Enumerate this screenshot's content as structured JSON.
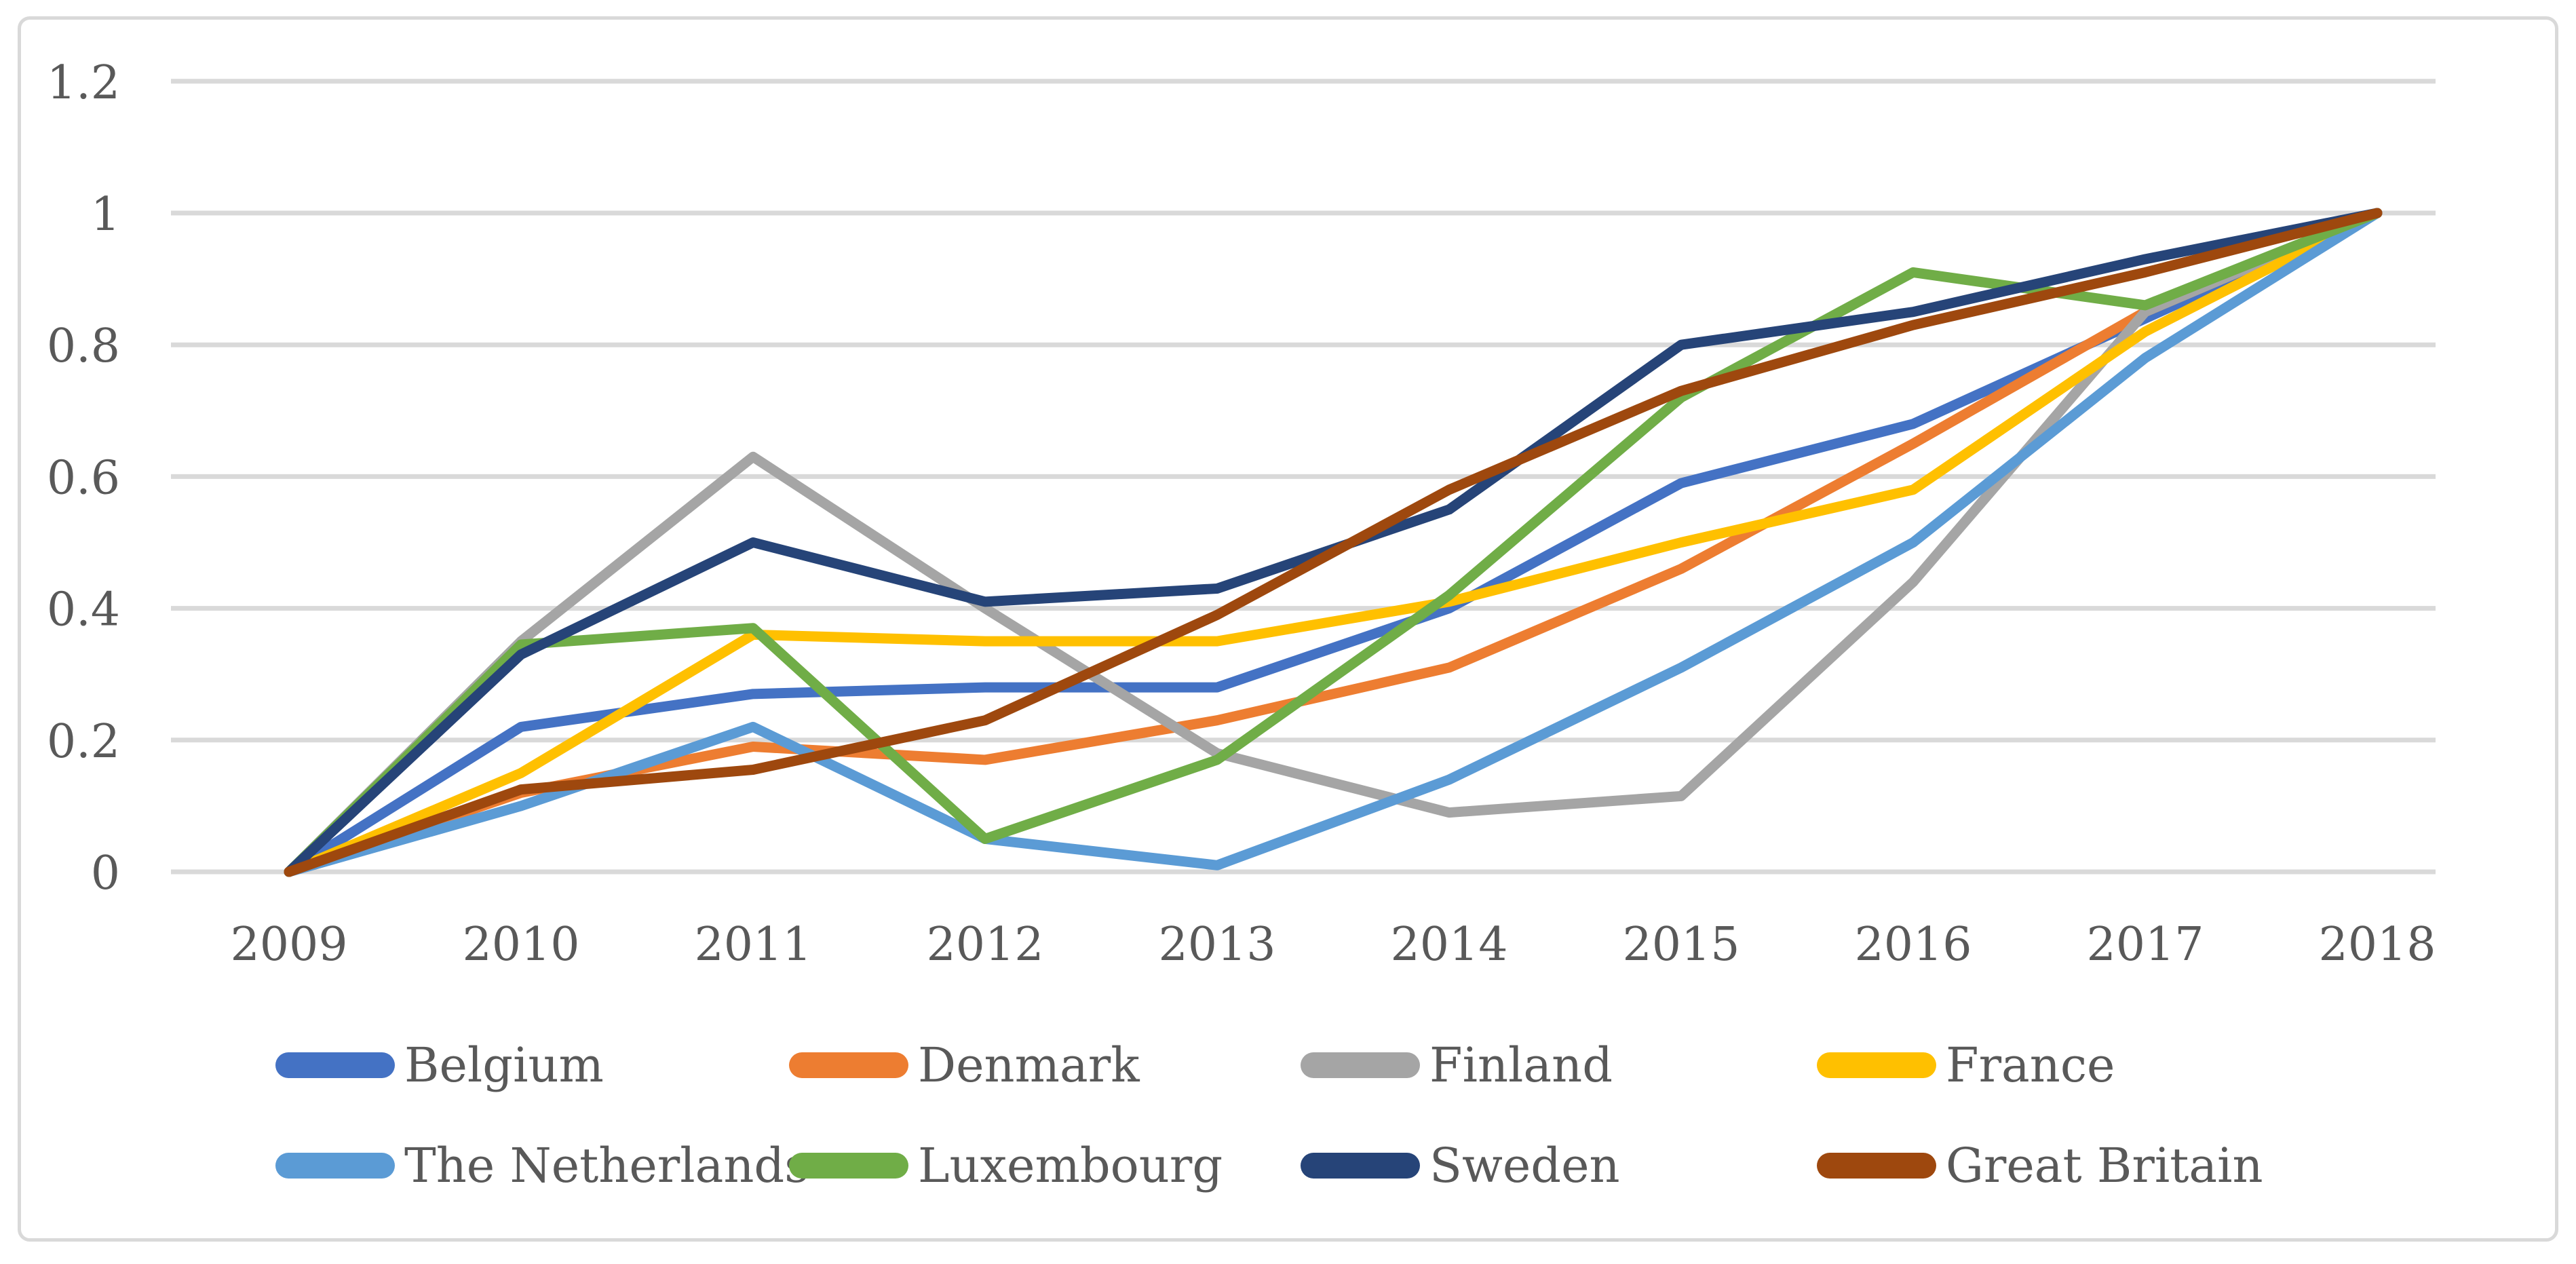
{
  "chart_data": {
    "type": "line",
    "title": "",
    "xlabel": "",
    "ylabel": "",
    "x": [
      2009,
      2010,
      2011,
      2012,
      2013,
      2014,
      2015,
      2016,
      2017,
      2018
    ],
    "xtick_labels": [
      "2009",
      "2010",
      "2011",
      "2012",
      "2013",
      "2014",
      "2015",
      "2016",
      "2017",
      "2018"
    ],
    "ylim": [
      0,
      1.2
    ],
    "yticks": [
      0,
      0.2,
      0.4,
      0.6,
      0.8,
      1,
      1.2
    ],
    "ytick_labels": [
      "0",
      "0.2",
      "0.4",
      "0.6",
      "0.8",
      "1",
      "1.2"
    ],
    "grid": true,
    "legend_position": "bottom",
    "series": [
      {
        "name": "Belgium",
        "color": "#4472C4",
        "values": [
          0,
          0.22,
          0.27,
          0.28,
          0.28,
          0.4,
          0.59,
          0.68,
          0.84,
          1.0
        ]
      },
      {
        "name": "Denmark",
        "color": "#ED7D31",
        "values": [
          0,
          0.12,
          0.19,
          0.17,
          0.23,
          0.31,
          0.46,
          0.65,
          0.85,
          1.0
        ]
      },
      {
        "name": "Finland",
        "color": "#A5A5A5",
        "values": [
          0,
          0.35,
          0.63,
          0.4,
          0.18,
          0.09,
          0.115,
          0.44,
          0.85,
          1.0
        ]
      },
      {
        "name": "France",
        "color": "#FFC000",
        "values": [
          0,
          0.15,
          0.36,
          0.35,
          0.35,
          0.41,
          0.5,
          0.58,
          0.82,
          1.0
        ]
      },
      {
        "name": "The Netherlands",
        "color": "#5B9BD5",
        "values": [
          0,
          0.1,
          0.22,
          0.05,
          0.01,
          0.14,
          0.31,
          0.5,
          0.78,
          1.0
        ]
      },
      {
        "name": "Luxembourg",
        "color": "#70AD47",
        "values": [
          0,
          0.345,
          0.37,
          0.05,
          0.17,
          0.42,
          0.72,
          0.91,
          0.86,
          1.0
        ]
      },
      {
        "name": "Sweden",
        "color": "#264478",
        "values": [
          0,
          0.33,
          0.5,
          0.41,
          0.43,
          0.55,
          0.8,
          0.85,
          0.93,
          1.0
        ]
      },
      {
        "name": "Great Britain",
        "color": "#9E480E",
        "values": [
          0,
          0.125,
          0.155,
          0.23,
          0.39,
          0.58,
          0.73,
          0.83,
          0.91,
          1.0
        ]
      }
    ]
  },
  "style": {
    "background": "#FFFFFF",
    "gridline_color": "#D9D9D9",
    "border_color": "#D9D9D9",
    "text_color": "#595959",
    "line_width": 15
  }
}
